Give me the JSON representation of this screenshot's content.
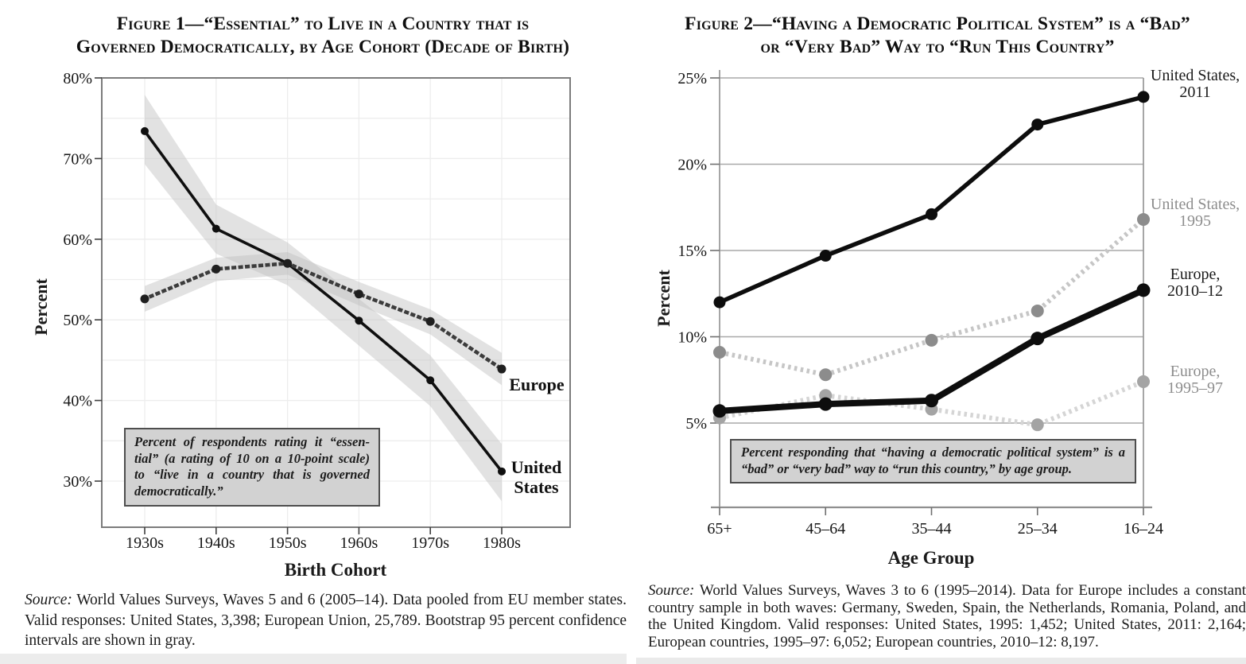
{
  "sources": [
    {
      "label": "Source:",
      "text": "World Values Surveys, Waves 5 and 6 (2005–14). Data pooled from EU member states. Valid responses: United States, 3,398; European Union, 25,789. Bootstrap 95 percent confidence intervals are shown in gray."
    },
    {
      "label": "Source:",
      "text": "World Values Surveys, Waves 3 to 6 (1995–2014). Data for Europe includes a constant country sample in both waves: Germany, Sweden, Spain, the Netherlands, Romania, Poland, and the United Kingdom. Valid responses: United States, 1995: 1,452; United States, 2011: 2,164; European countries, 1995–97: 6,052; European countries, 2010–12: 8,197."
    }
  ],
  "chart_data": [
    {
      "type": "line",
      "title_lines": [
        "Figure 1—“Essential” to Live in a Country that is",
        "Governed Democratically, by Age Cohort (Decade of Birth)"
      ],
      "ylabel": "Percent",
      "xlabel": "Birth Cohort",
      "categories": [
        "1930s",
        "1940s",
        "1950s",
        "1960s",
        "1970s",
        "1980s"
      ],
      "yticks": [
        "80%",
        "70%",
        "60%",
        "50%",
        "40%",
        "30%"
      ],
      "ytick_values": [
        80,
        70,
        60,
        50,
        40,
        30
      ],
      "ylim": [
        24,
        80
      ],
      "grid": "light horizontal every 5 points, light vertical per cohort, boxed frame",
      "legend_position": "labels at line ends inside plot",
      "band_color": "#bfbfbf",
      "series": [
        {
          "name": "United States",
          "label_lines": [
            "United",
            "States"
          ],
          "values": [
            73.4,
            61.3,
            57.0,
            49.9,
            42.5,
            31.2
          ],
          "band_lo": [
            69.3,
            58.2,
            54.3,
            46.8,
            39.3,
            27.5
          ],
          "band_hi": [
            77.9,
            64.3,
            59.6,
            52.6,
            45.6,
            34.6
          ],
          "style": "solid",
          "color": "#0f0f0f",
          "marker_color": "#0f0f0f",
          "line_width": 3.6,
          "marker_r": 5,
          "z": 1
        },
        {
          "name": "Europe",
          "label_lines": [
            "Europe"
          ],
          "values": [
            52.6,
            56.3,
            57.0,
            53.2,
            49.8,
            43.9
          ],
          "band_lo": [
            51.0,
            54.8,
            55.6,
            51.8,
            48.2,
            41.9
          ],
          "band_hi": [
            54.2,
            57.7,
            58.4,
            54.7,
            51.3,
            45.9
          ],
          "style": "dotted",
          "color": "#3c3c3c",
          "marker_color": "#1f1f1f",
          "line_width": 4.6,
          "marker_r": 5.5,
          "z": 2
        }
      ],
      "note_lines": [
        "Percent of respondents rating it “essen-",
        "tial” (a rating of 10 on a 10-point scale)",
        "to “live in a country that is governed",
        "democratically.”"
      ]
    },
    {
      "type": "line",
      "title_lines": [
        "Figure 2—“Having a Democratic Political System” is a “Bad”",
        "or “Very Bad” Way to “Run This Country”"
      ],
      "ylabel": "Percent",
      "xlabel": "Age Group",
      "categories": [
        "65+",
        "45–64",
        "35–44",
        "25–34",
        "16–24"
      ],
      "yticks": [
        "25%",
        "20%",
        "15%",
        "10%",
        "5%"
      ],
      "ytick_values": [
        25,
        20,
        15,
        10,
        5
      ],
      "ylim": [
        1,
        25
      ],
      "grid": "gray horizontal at each 5%, open frame with left and right spines",
      "legend_position": "labels right of plot",
      "series": [
        {
          "name": "United States, 2011",
          "label_lines": [
            "United States,",
            "2011"
          ],
          "values": [
            12.0,
            14.7,
            17.1,
            22.3,
            23.9
          ],
          "style": "solid",
          "color": "#0d0d0d",
          "marker_color": "#0d0d0d",
          "line_width": 5.5,
          "marker_r": 7.5,
          "z": 4
        },
        {
          "name": "United States, 1995",
          "label_lines": [
            "United States,",
            "1995"
          ],
          "values": [
            9.1,
            7.8,
            9.8,
            11.5,
            16.8
          ],
          "style": "dashed",
          "color": "#c6c6c6",
          "marker_color": "#8c8c8c",
          "line_width": 6,
          "marker_r": 8,
          "z": 2
        },
        {
          "name": "Europe, 2010–12",
          "label_lines": [
            "Europe,",
            "2010–12"
          ],
          "values": [
            5.7,
            6.1,
            6.3,
            9.9,
            12.7
          ],
          "style": "solid",
          "color": "#0d0d0d",
          "marker_color": "#0d0d0d",
          "line_width": 8,
          "marker_r": 8.5,
          "z": 3
        },
        {
          "name": "Europe, 1995–97",
          "label_lines": [
            "Europe,",
            "1995–97"
          ],
          "values": [
            5.3,
            6.6,
            5.8,
            4.9,
            7.4
          ],
          "style": "dashed",
          "color": "#d5d5d5",
          "marker_color": "#a4a4a4",
          "line_width": 6,
          "marker_r": 8,
          "z": 1
        }
      ],
      "note_lines": [
        "Percent responding that “having a democratic political system” is a",
        "“bad” or “very bad” way to “run this country,” by age group."
      ]
    }
  ]
}
